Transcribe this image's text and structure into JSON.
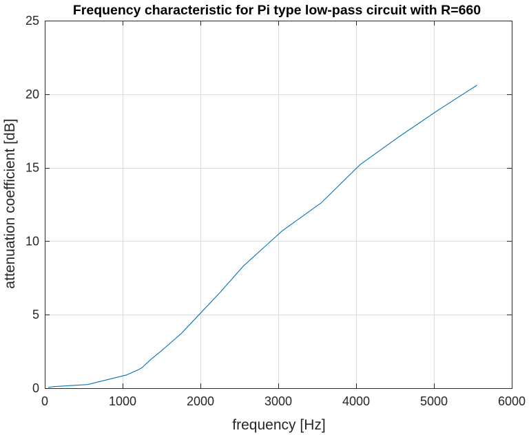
{
  "chart_data": {
    "type": "line",
    "title": "Frequency characteristic for Pi type low-pass circuit with R=660",
    "xlabel": "frequency [Hz]",
    "ylabel": "attenuation coefficient [dB]",
    "xlim": [
      0,
      6000
    ],
    "ylim": [
      0,
      25
    ],
    "xticks": [
      0,
      1000,
      2000,
      3000,
      4000,
      5000,
      6000
    ],
    "yticks": [
      0,
      5,
      10,
      15,
      20,
      25
    ],
    "grid": true,
    "legend": "none",
    "series": [
      {
        "color": "#0072BD",
        "x": [
          50,
          100,
          550,
          1050,
          1200,
          1250,
          1350,
          1500,
          1750,
          2000,
          2250,
          2550,
          3050,
          3550,
          4050,
          4550,
          5050,
          5550
        ],
        "y": [
          0.05,
          0.1,
          0.25,
          0.9,
          1.25,
          1.4,
          1.9,
          2.55,
          3.7,
          5.1,
          6.5,
          8.3,
          10.7,
          12.6,
          15.2,
          17.1,
          18.9,
          20.6
        ]
      }
    ]
  }
}
